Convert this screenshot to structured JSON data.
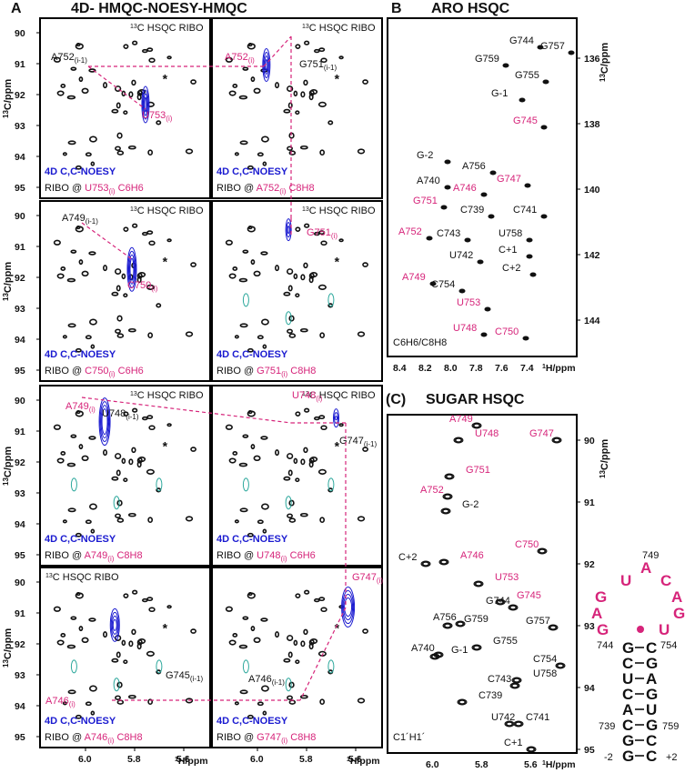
{
  "figure": {
    "panel_a_letter": "A",
    "panel_a_title": "4D- HMQC-NOESY-HMQC",
    "panel_b_letter": "B",
    "panel_b_title": "ARO HSQC",
    "panel_c_letter": "(C)",
    "panel_c_title": "SUGAR HSQC"
  },
  "colors": {
    "magenta": "#d6247a",
    "blue": "#1a1ad0",
    "cyan": "#2aa79b",
    "black": "#111111"
  },
  "axes": {
    "c13_label": "13C/ppm",
    "h1_label": "1H/ppm",
    "a_y_ticks": [
      "90",
      "91",
      "92",
      "93",
      "94",
      "95"
    ],
    "a_x_ticks": [
      "6.0",
      "5.8",
      "5.6"
    ],
    "b_x_ticks": [
      "8.4",
      "8.2",
      "8.0",
      "7.8",
      "7.6",
      "7.4"
    ],
    "b_y_ticks": [
      "136",
      "138",
      "140",
      "142",
      "144"
    ],
    "c_x_ticks": [
      "6.0",
      "5.8",
      "5.6"
    ],
    "c_y_ticks": [
      "90",
      "91",
      "92",
      "93",
      "94",
      "95"
    ]
  },
  "panels": [
    {
      "header": "13C HSQC RIBO",
      "noesy": "4D C,C-NOESY",
      "ribo": "RIBO @",
      "res": "U753",
      "sub": "(i)",
      "atom": "C6H6",
      "labels": [
        {
          "t": "A752",
          "s": "(i-1)",
          "c": "k"
        },
        {
          "t": "U753",
          "s": "(i)",
          "c": "m"
        }
      ]
    },
    {
      "header": "13C HSQC RIBO",
      "noesy": "4D C,C-NOESY",
      "ribo": "RIBO @",
      "res": "A752",
      "sub": "(i)",
      "atom": "C8H8",
      "labels": [
        {
          "t": "A752",
          "s": "(i)",
          "c": "m"
        },
        {
          "t": "G751",
          "s": "(i-1)",
          "c": "k"
        }
      ]
    },
    {
      "header": "13C HSQC RIBO",
      "noesy": "4D C,C-NOESY",
      "ribo": "RIBO @",
      "res": "C750",
      "sub": "(i)",
      "atom": "C6H6",
      "labels": [
        {
          "t": "A749",
          "s": "(i-1)",
          "c": "k"
        },
        {
          "t": "C750",
          "s": "(i)",
          "c": "m"
        }
      ]
    },
    {
      "header": "13C HSQC RIBO",
      "noesy": "4D C,C-NOESY",
      "ribo": "RIBO @",
      "res": "G751",
      "sub": "(i)",
      "atom": "C8H8",
      "labels": [
        {
          "t": "G751",
          "s": "(i)",
          "c": "m"
        }
      ]
    },
    {
      "header": "13C HSQC RIBO",
      "noesy": "4D C,C-NOESY",
      "ribo": "RIBO @",
      "res": "A749",
      "sub": "(i)",
      "atom": "C8H8",
      "labels": [
        {
          "t": "A749",
          "s": "(i)",
          "c": "m"
        },
        {
          "t": "U748",
          "s": "(i-1)",
          "c": "k"
        }
      ]
    },
    {
      "header": "13C HSQC RIBO",
      "noesy": "4D C,C-NOESY",
      "ribo": "RIBO @",
      "res": "U748",
      "sub": "(i)",
      "atom": "C6H6",
      "labels": [
        {
          "t": "U748",
          "s": "(i)",
          "c": "m"
        },
        {
          "t": "G747",
          "s": "(i-1)",
          "c": "k"
        }
      ]
    },
    {
      "header": "13C HSQC RIBO",
      "noesy": "4D C,C-NOESY",
      "ribo": "RIBO @",
      "res": "A746",
      "sub": "(i)",
      "atom": "C8H8",
      "labels": [
        {
          "t": "A746",
          "s": "(i)",
          "c": "m"
        },
        {
          "t": "G745",
          "s": "(i-1)",
          "c": "k"
        }
      ]
    },
    {
      "header": "",
      "noesy": "4D C,C-NOESY",
      "ribo": "RIBO @",
      "res": "G747",
      "sub": "(i)",
      "atom": "C8H8",
      "labels": [
        {
          "t": "G747",
          "s": "(i)",
          "c": "m"
        },
        {
          "t": "A746",
          "s": "(i-1)",
          "c": "k"
        }
      ]
    }
  ],
  "star": "*",
  "aro_footer": "C6H6/C8H8",
  "sugar_footer": "C1´H1´",
  "aro_peaks": [
    {
      "t": "G759",
      "c": "k"
    },
    {
      "t": "G744",
      "c": "k"
    },
    {
      "t": "G757",
      "c": "k"
    },
    {
      "t": "G755",
      "c": "k"
    },
    {
      "t": "G-1",
      "c": "k"
    },
    {
      "t": "G745",
      "c": "m"
    },
    {
      "t": "G-2",
      "c": "k"
    },
    {
      "t": "A756",
      "c": "k"
    },
    {
      "t": "A740",
      "c": "k"
    },
    {
      "t": "A746",
      "c": "m"
    },
    {
      "t": "G747",
      "c": "m"
    },
    {
      "t": "G751",
      "c": "m"
    },
    {
      "t": "C739",
      "c": "k"
    },
    {
      "t": "C741",
      "c": "k"
    },
    {
      "t": "A752",
      "c": "m"
    },
    {
      "t": "C743",
      "c": "k"
    },
    {
      "t": "U758",
      "c": "k"
    },
    {
      "t": "C+1",
      "c": "k"
    },
    {
      "t": "U742",
      "c": "k"
    },
    {
      "t": "C+2",
      "c": "k"
    },
    {
      "t": "A749",
      "c": "m"
    },
    {
      "t": "C754",
      "c": "k"
    },
    {
      "t": "U753",
      "c": "m"
    },
    {
      "t": "U748",
      "c": "m"
    },
    {
      "t": "C750",
      "c": "m"
    }
  ],
  "sugar_peaks": [
    {
      "t": "A749",
      "c": "m"
    },
    {
      "t": "U748",
      "c": "m"
    },
    {
      "t": "G747",
      "c": "m"
    },
    {
      "t": "G751",
      "c": "m"
    },
    {
      "t": "A752",
      "c": "m"
    },
    {
      "t": "G-2",
      "c": "k"
    },
    {
      "t": "C+2",
      "c": "k"
    },
    {
      "t": "A746",
      "c": "m"
    },
    {
      "t": "C750",
      "c": "m"
    },
    {
      "t": "U753",
      "c": "m"
    },
    {
      "t": "G744",
      "c": "k"
    },
    {
      "t": "G745",
      "c": "m"
    },
    {
      "t": "A756",
      "c": "k"
    },
    {
      "t": "G759",
      "c": "k"
    },
    {
      "t": "G757",
      "c": "k"
    },
    {
      "t": "G755",
      "c": "k"
    },
    {
      "t": "A740",
      "c": "k"
    },
    {
      "t": "G-1",
      "c": "k"
    },
    {
      "t": "C754",
      "c": "k"
    },
    {
      "t": "U758",
      "c": "k"
    },
    {
      "t": "C743",
      "c": "k"
    },
    {
      "t": "C739",
      "c": "k"
    },
    {
      "t": "U742",
      "c": "k"
    },
    {
      "t": "C741",
      "c": "k"
    },
    {
      "t": "C+1",
      "c": "k"
    }
  ],
  "rna": {
    "loop_number": "749",
    "loop": [
      "U",
      "A",
      "C",
      "G",
      "A",
      "A",
      "G",
      "G",
      "U"
    ],
    "stem_left": [
      "G",
      "C",
      "U",
      "C",
      "A",
      "C",
      "G",
      "G"
    ],
    "stem_right": [
      "C",
      "G",
      "A",
      "G",
      "U",
      "G",
      "C",
      "C"
    ],
    "left_numbers": [
      "744",
      "739",
      "-2"
    ],
    "right_numbers": [
      "754",
      "759",
      "+2"
    ]
  }
}
